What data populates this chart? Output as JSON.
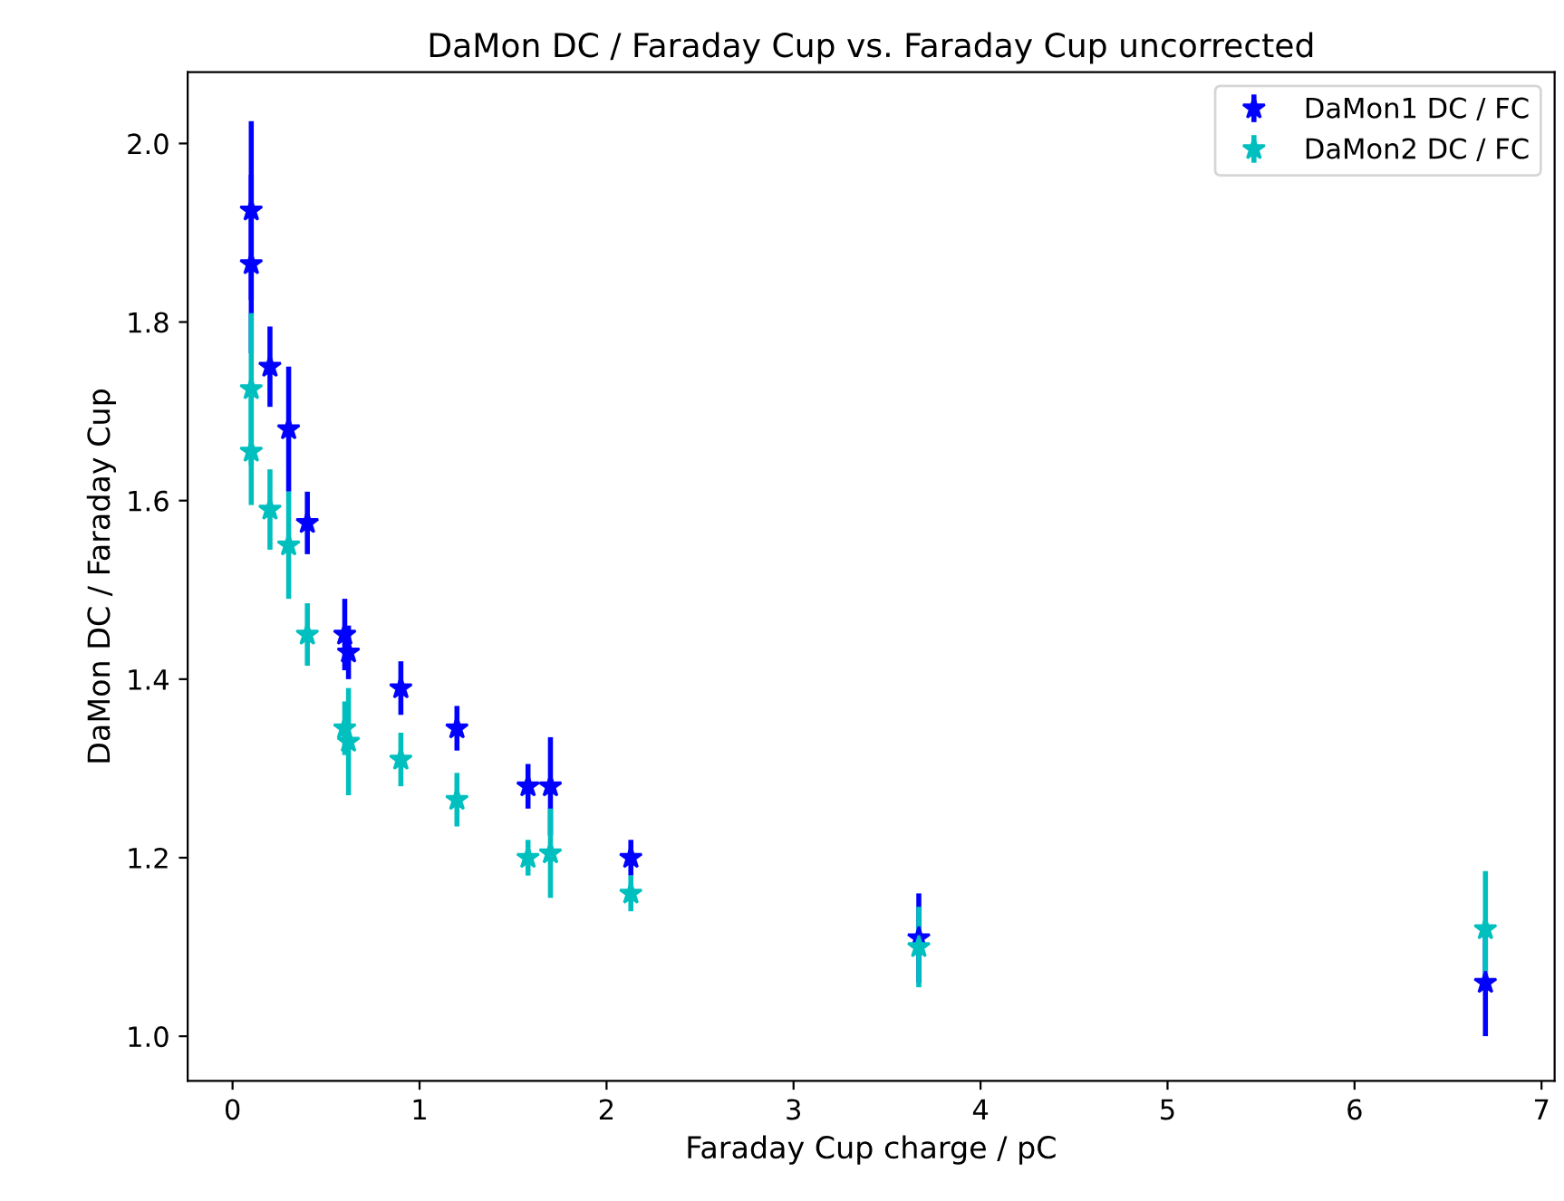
{
  "chart_data": {
    "type": "scatter",
    "title": "DaMon DC / Faraday Cup vs. Faraday Cup uncorrected",
    "xlabel": "Faraday Cup charge / pC",
    "ylabel": "DaMon DC / Faraday Cup",
    "x": [
      0.1,
      0.1,
      0.2,
      0.3,
      0.4,
      0.6,
      0.62,
      0.9,
      1.2,
      1.58,
      1.7,
      2.13,
      3.67,
      6.7
    ],
    "series": [
      {
        "name": "DaMon1 DC / FC",
        "color": "#0000ff",
        "values": [
          1.925,
          1.865,
          1.75,
          1.68,
          1.575,
          1.45,
          1.43,
          1.39,
          1.345,
          1.28,
          1.28,
          1.2,
          1.11,
          1.06
        ],
        "errors": [
          0.1,
          0.1,
          0.045,
          0.07,
          0.035,
          0.04,
          0.03,
          0.03,
          0.025,
          0.025,
          0.055,
          0.02,
          0.05,
          0.06
        ]
      },
      {
        "name": "DaMon2 DC / FC",
        "color": "#00bfbf",
        "values": [
          1.725,
          1.655,
          1.59,
          1.55,
          1.45,
          1.345,
          1.33,
          1.31,
          1.265,
          1.2,
          1.205,
          1.16,
          1.1,
          1.12
        ],
        "errors": [
          0.085,
          0.06,
          0.045,
          0.06,
          0.035,
          0.03,
          0.06,
          0.03,
          0.03,
          0.02,
          0.05,
          0.02,
          0.045,
          0.065
        ]
      }
    ],
    "marker": "star",
    "legend": "top right",
    "grid": false,
    "xlim": [
      -0.24,
      7.07
    ],
    "xticks": [
      0,
      1,
      2,
      3,
      4,
      5,
      6,
      7
    ],
    "ylim": [
      0.95,
      2.08
    ],
    "yticks": [
      {
        "value": 1.0,
        "label": "1.0"
      },
      {
        "value": 1.2,
        "label": "1.2"
      },
      {
        "value": 1.4,
        "label": "1.4"
      },
      {
        "value": 1.6,
        "label": "1.6"
      },
      {
        "value": 1.8,
        "label": "1.8"
      },
      {
        "value": 2.0,
        "label": "2.0"
      }
    ]
  }
}
